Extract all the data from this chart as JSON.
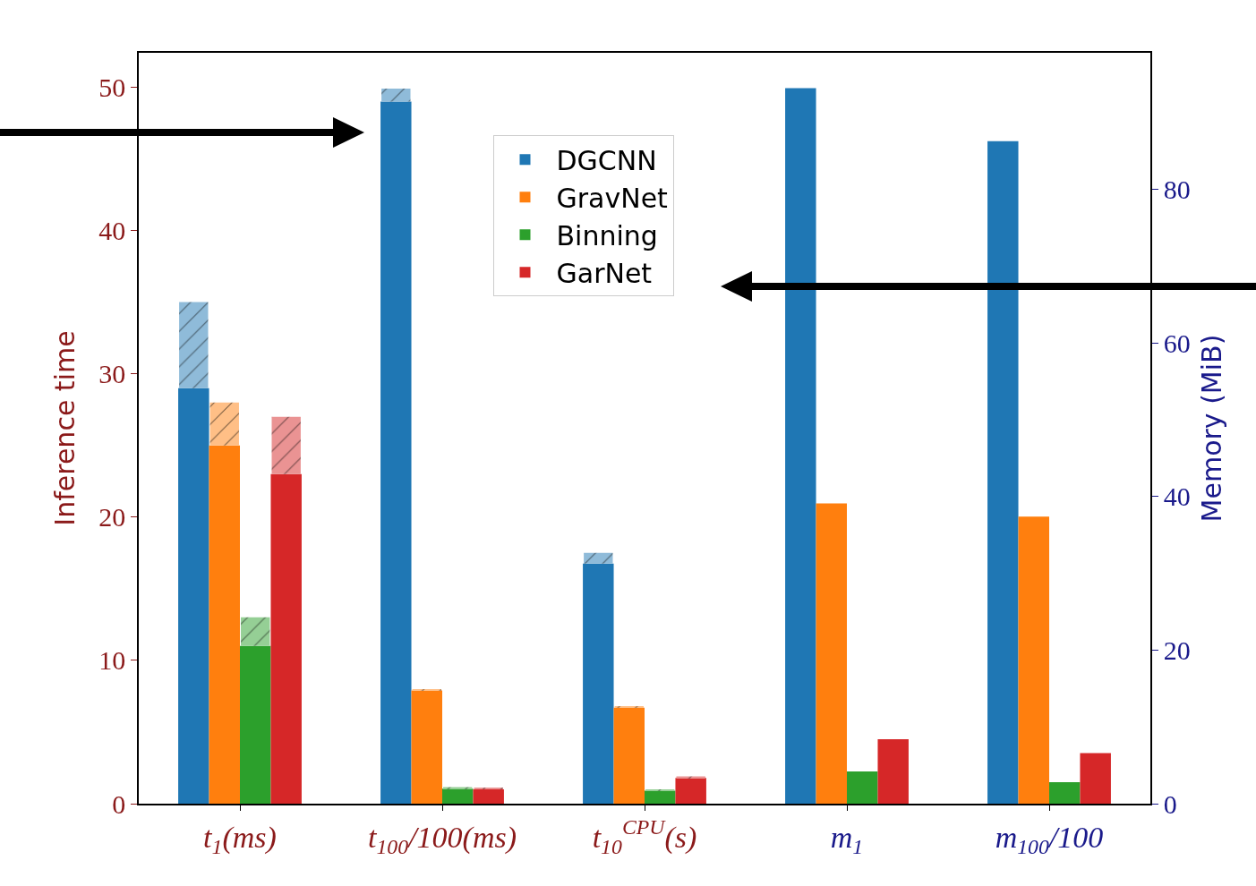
{
  "chart_data": {
    "type": "bar",
    "categories": [
      "t$_{1}$(ms)",
      "t$_{100}$/100(ms)",
      "t$_{10}$$^{CPU}$(s)",
      "m$_{1}$",
      "m$_{100}$/100"
    ],
    "ylabel": "Inference time",
    "y2label": "Memory (MiB)",
    "ylim": [
      0,
      52.4
    ],
    "yticks": [
      0,
      10,
      20,
      30,
      40,
      50
    ],
    "y2lim": [
      0,
      97.8
    ],
    "y2ticks": [
      0,
      20,
      40,
      60,
      80
    ],
    "series": [
      {
        "name": "DGCNN",
        "color": "#1f77b4",
        "values": [
          29,
          49,
          16.75,
          null,
          null
        ]
      },
      {
        "name": "GravNet",
        "color": "#ff7f0e",
        "values": [
          25,
          7.9,
          6.7,
          null,
          null
        ]
      },
      {
        "name": "Binning",
        "color": "#2ca02c",
        "values": [
          11,
          1.05,
          0.9,
          null,
          null
        ]
      },
      {
        "name": "GarNet",
        "color": "#d62728",
        "values": [
          23,
          1.0,
          1.8,
          null,
          null
        ]
      },
      {
        "color": "#8fbbd9",
        "base": [
          29,
          49,
          16.75,
          null,
          null
        ],
        "values": [
          6,
          0.9,
          0.75,
          null,
          null
        ]
      },
      {
        "color": "#ffbf86",
        "base": [
          25,
          7.9,
          6.7,
          null,
          null
        ],
        "values": [
          3,
          0.1,
          0.1,
          null,
          null
        ]
      },
      {
        "color": "#95cf95",
        "base": [
          11,
          1.05,
          0.9,
          null,
          null
        ],
        "values": [
          2,
          0.1,
          0.1,
          null,
          null
        ]
      },
      {
        "color": "#ea9393",
        "base": [
          23,
          1.0,
          1.8,
          null,
          null
        ],
        "values": [
          4,
          0.1,
          0.1,
          null,
          null
        ]
      },
      {
        "color": "#1f77b4",
        "axis": "y2",
        "values": [
          null,
          null,
          null,
          93.2,
          86.3
        ]
      },
      {
        "color": "#ff7f0e",
        "axis": "y2",
        "values": [
          null,
          null,
          null,
          39.1,
          37.4
        ]
      },
      {
        "color": "#2ca02c",
        "axis": "y2",
        "values": [
          null,
          null,
          null,
          4.2,
          2.8
        ]
      },
      {
        "color": "#d62728",
        "axis": "y2",
        "values": [
          null,
          null,
          null,
          8.4,
          6.6
        ]
      }
    ],
    "legend": "top"
  }
}
